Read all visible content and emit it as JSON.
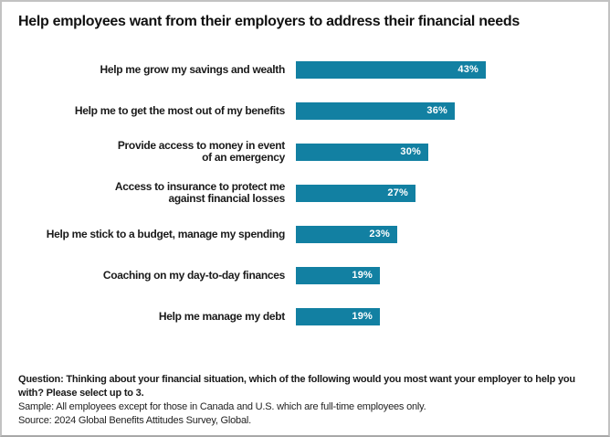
{
  "title": "Help employees want from their employers to address their financial needs",
  "chart_data": {
    "type": "bar",
    "orientation": "horizontal",
    "title": "Help employees want from their employers to address their financial needs",
    "categories": [
      "Help me grow my savings and wealth",
      "Help me to get the most out of my benefits",
      "Provide access to money in event\nof an emergency",
      "Access to insurance to protect me\nagainst financial losses",
      "Help me stick to a budget, manage my spending",
      "Coaching on my day-to-day finances",
      "Help me manage my debt"
    ],
    "values": [
      43,
      36,
      30,
      27,
      23,
      19,
      19
    ],
    "value_labels": [
      "43%",
      "36%",
      "30%",
      "27%",
      "23%",
      "19%",
      "19%"
    ],
    "xlabel": "",
    "ylabel": "",
    "xlim": [
      0,
      50
    ],
    "grid": false,
    "legend": false,
    "bar_color": "#1280A2",
    "value_label_color": "#FFFFFF"
  },
  "footnotes": {
    "question": "Question: Thinking about your financial situation, which of the following would you most want your employer to help you with? Please select up to 3.",
    "sample": "Sample: All employees except for those in Canada and U.S. which are full-time employees only.",
    "source": "Source: 2024 Global Benefits Attitudes Survey, Global."
  }
}
